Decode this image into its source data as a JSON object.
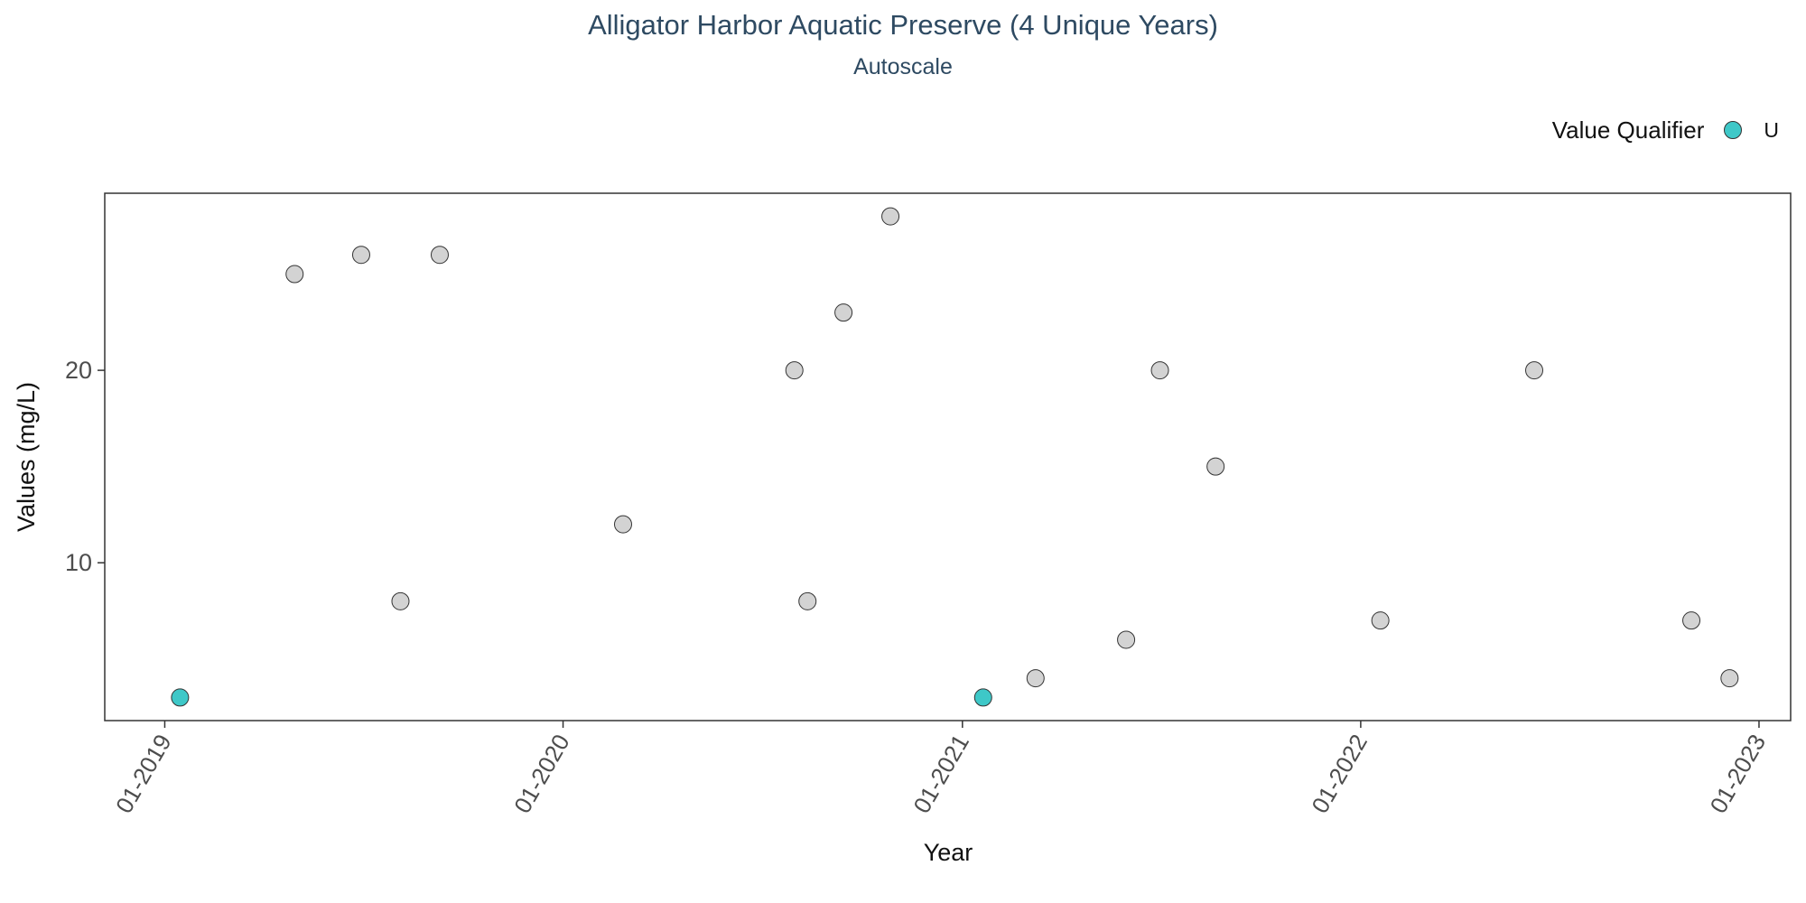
{
  "chart_data": {
    "type": "scatter",
    "title": "Alligator Harbor Aquatic Preserve (4 Unique Years)",
    "subtitle": "Autoscale",
    "xlabel": "Year",
    "ylabel": "Values (mg/L)",
    "x_ticks": [
      {
        "date": "2019-01-01",
        "label": "01-2019"
      },
      {
        "date": "2020-01-01",
        "label": "01-2020"
      },
      {
        "date": "2021-01-01",
        "label": "01-2021"
      },
      {
        "date": "2022-01-01",
        "label": "01-2022"
      },
      {
        "date": "2023-01-01",
        "label": "01-2023"
      }
    ],
    "xlim": [
      "2018-11-07",
      "2023-01-30"
    ],
    "y_ticks": [
      10,
      20
    ],
    "ylim": [
      1.8,
      29.2
    ],
    "grid": false,
    "legend": {
      "title": "Value Qualifier",
      "placement": "top-right",
      "entries": [
        {
          "label": "U",
          "color": "#3ec8c8"
        }
      ]
    },
    "colors": {
      "default_point": "#d3d3d3",
      "qualifier_u": "#3ec8c8",
      "point_stroke": "#333333"
    },
    "points": [
      {
        "date": "2019-01-15",
        "value": 3,
        "qualifier": "U"
      },
      {
        "date": "2019-04-30",
        "value": 25,
        "qualifier": ""
      },
      {
        "date": "2019-06-30",
        "value": 26,
        "qualifier": ""
      },
      {
        "date": "2019-08-05",
        "value": 8,
        "qualifier": ""
      },
      {
        "date": "2019-09-10",
        "value": 26,
        "qualifier": ""
      },
      {
        "date": "2020-02-25",
        "value": 12,
        "qualifier": ""
      },
      {
        "date": "2020-07-31",
        "value": 20,
        "qualifier": ""
      },
      {
        "date": "2020-08-12",
        "value": 8,
        "qualifier": ""
      },
      {
        "date": "2020-09-14",
        "value": 23,
        "qualifier": ""
      },
      {
        "date": "2020-10-27",
        "value": 28,
        "qualifier": ""
      },
      {
        "date": "2021-01-20",
        "value": 3,
        "qualifier": "U"
      },
      {
        "date": "2021-03-09",
        "value": 4,
        "qualifier": ""
      },
      {
        "date": "2021-05-31",
        "value": 6,
        "qualifier": ""
      },
      {
        "date": "2021-07-01",
        "value": 20,
        "qualifier": ""
      },
      {
        "date": "2021-08-21",
        "value": 15,
        "qualifier": ""
      },
      {
        "date": "2022-01-19",
        "value": 7,
        "qualifier": ""
      },
      {
        "date": "2022-06-09",
        "value": 20,
        "qualifier": ""
      },
      {
        "date": "2022-10-31",
        "value": 7,
        "qualifier": ""
      },
      {
        "date": "2022-12-05",
        "value": 4,
        "qualifier": ""
      }
    ]
  }
}
